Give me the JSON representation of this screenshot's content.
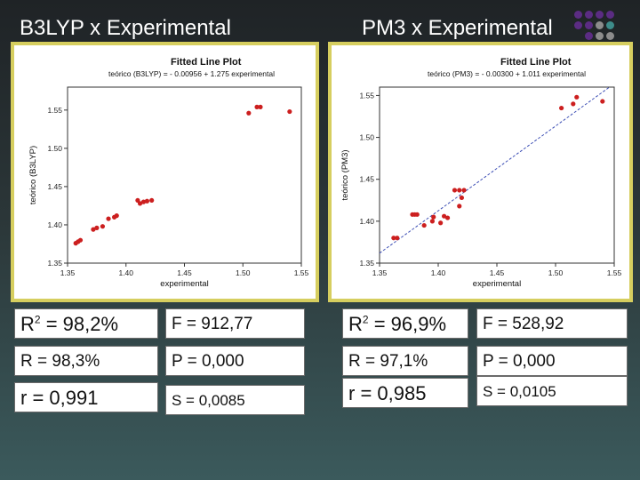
{
  "titles": {
    "left": "B3LYP x Experimental",
    "right": "PM3 x  Experimental"
  },
  "colors": {
    "frame": "#d6ce5f",
    "points": "#cc1f1f",
    "fitline": "#3d4fb5",
    "decor_purple": "#5b2c83",
    "decor_gray": "#8c8c8c",
    "decor_teal": "#3d8c8a"
  },
  "decor": {
    "icon": "dot-grid-icon"
  },
  "stats": {
    "left": {
      "r2": {
        "prefix": "R",
        "sup": "2",
        "rest": " = 98,2%"
      },
      "r": "R = 98,3%",
      "r_small": "r = 0,991",
      "f": "F =  912,77",
      "p": "P =  0,000",
      "s": "S = 0,0085"
    },
    "right": {
      "r2": {
        "prefix": "R",
        "sup": "2",
        "rest": " = 96,9%"
      },
      "r": "R = 97,1%",
      "r_small": "r = 0,985",
      "f": "F =  528,92",
      "p": "P =  0,000",
      "s": "S = 0,0105"
    }
  },
  "chart_data": [
    {
      "type": "scatter",
      "title": "Fitted Line Plot",
      "subtitle": "teórico (B3LYP) = - 0.00956 + 1.275 experimental",
      "xlabel": "experimental",
      "ylabel": "teórico (B3LYP)",
      "xlim": [
        1.35,
        1.55
      ],
      "ylim": [
        1.35,
        1.58
      ],
      "xticks": [
        "1.35",
        "1.40",
        "1.45",
        "1.50",
        "1.55"
      ],
      "yticks": [
        "1.35",
        "1.40",
        "1.45",
        "1.50",
        "1.55"
      ],
      "fit": {
        "intercept": -0.00956,
        "slope": 1.275
      },
      "points": [
        [
          1.357,
          1.376
        ],
        [
          1.359,
          1.378
        ],
        [
          1.361,
          1.38
        ],
        [
          1.372,
          1.394
        ],
        [
          1.375,
          1.396
        ],
        [
          1.38,
          1.398
        ],
        [
          1.385,
          1.408
        ],
        [
          1.39,
          1.41
        ],
        [
          1.392,
          1.412
        ],
        [
          1.41,
          1.432
        ],
        [
          1.412,
          1.428
        ],
        [
          1.415,
          1.43
        ],
        [
          1.418,
          1.431
        ],
        [
          1.422,
          1.432
        ],
        [
          1.505,
          1.546
        ],
        [
          1.512,
          1.554
        ],
        [
          1.515,
          1.554
        ],
        [
          1.54,
          1.548
        ]
      ]
    },
    {
      "type": "scatter",
      "title": "Fitted Line Plot",
      "subtitle": "teórico (PM3) = - 0.00300 + 1.011 experimental",
      "xlabel": "experimental",
      "ylabel": "teórico (PM3)",
      "xlim": [
        1.35,
        1.55
      ],
      "ylim": [
        1.35,
        1.56
      ],
      "xticks": [
        "1.35",
        "1.40",
        "1.45",
        "1.50",
        "1.55"
      ],
      "yticks": [
        "1.35",
        "1.40",
        "1.45",
        "1.50",
        "1.55"
      ],
      "fit": {
        "intercept": -0.003,
        "slope": 1.011
      },
      "points": [
        [
          1.362,
          1.38
        ],
        [
          1.365,
          1.38
        ],
        [
          1.378,
          1.408
        ],
        [
          1.38,
          1.408
        ],
        [
          1.382,
          1.408
        ],
        [
          1.388,
          1.395
        ],
        [
          1.395,
          1.4
        ],
        [
          1.396,
          1.405
        ],
        [
          1.402,
          1.398
        ],
        [
          1.405,
          1.406
        ],
        [
          1.408,
          1.404
        ],
        [
          1.414,
          1.437
        ],
        [
          1.418,
          1.437
        ],
        [
          1.422,
          1.437
        ],
        [
          1.42,
          1.428
        ],
        [
          1.418,
          1.418
        ],
        [
          1.505,
          1.535
        ],
        [
          1.515,
          1.54
        ],
        [
          1.518,
          1.548
        ],
        [
          1.54,
          1.543
        ]
      ]
    }
  ]
}
